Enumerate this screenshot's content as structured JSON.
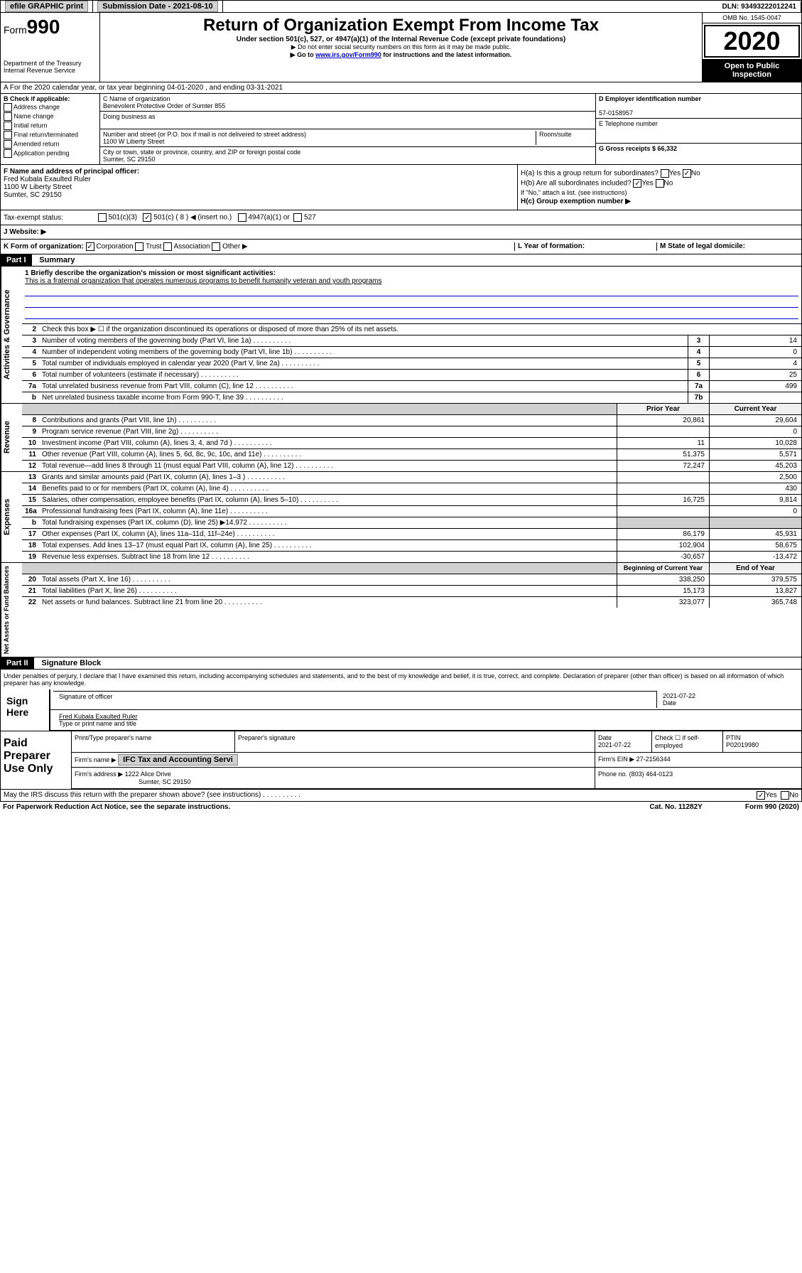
{
  "topbar": {
    "efile": "efile GRAPHIC print",
    "submission": "Submission Date - 2021-08-10",
    "dln": "DLN: 93493222012241"
  },
  "header": {
    "form_prefix": "Form",
    "form_number": "990",
    "dept": "Department of the Treasury\nInternal Revenue Service",
    "title": "Return of Organization Exempt From Income Tax",
    "subtitle": "Under section 501(c), 527, or 4947(a)(1) of the Internal Revenue Code (except private foundations)",
    "note1": "▶ Do not enter social security numbers on this form as it may be made public.",
    "note2_prefix": "▶ Go to ",
    "note2_link": "www.irs.gov/Form990",
    "note2_suffix": " for instructions and the latest information.",
    "omb": "OMB No. 1545-0047",
    "year": "2020",
    "open": "Open to Public Inspection"
  },
  "row_a": "A For the 2020 calendar year, or tax year beginning 04-01-2020    , and ending 03-31-2021",
  "col_b": {
    "title": "B Check if applicable:",
    "opts": [
      "Address change",
      "Name change",
      "Initial return",
      "Final return/terminated",
      "Amended return",
      "Application pending"
    ]
  },
  "col_c": {
    "name_label": "C Name of organization",
    "name": "Benevolent Protective Order of Sumter 855",
    "dba_label": "Doing business as",
    "dba": "",
    "addr_label": "Number and street (or P.O. box if mail is not delivered to street address)",
    "room_label": "Room/suite",
    "addr": "1100 W Liberty Street",
    "city_label": "City or town, state or province, country, and ZIP or foreign postal code",
    "city": "Sumter, SC  29150"
  },
  "col_d": {
    "ein_label": "D Employer identification number",
    "ein": "57-0158957",
    "phone_label": "E Telephone number",
    "phone": "",
    "gross_label": "G Gross receipts $ 66,332"
  },
  "col_f": {
    "label": "F  Name and address of principal officer:",
    "name": "Fred Kubala Exaulted Ruler",
    "addr1": "1100 W Liberty Street",
    "addr2": "Sumter, SC  29150"
  },
  "col_h": {
    "ha": "H(a)  Is this a group return for subordinates?",
    "hb": "H(b)  Are all subordinates included?",
    "hb_note": "If \"No,\" attach a list. (see instructions)",
    "hc": "H(c)  Group exemption number ▶"
  },
  "status": {
    "label": "Tax-exempt status:",
    "opt1": "501(c)(3)",
    "opt2": "501(c) ( 8 ) ◀ (insert no.)",
    "opt3": "4947(a)(1) or",
    "opt4": "527"
  },
  "website": {
    "label": "J    Website: ▶"
  },
  "korg": {
    "k": "K Form of organization:",
    "k1": "Corporation",
    "k2": "Trust",
    "k3": "Association",
    "k4": "Other ▶",
    "l": "L Year of formation:",
    "m": "M State of legal domicile:"
  },
  "part1": {
    "header": "Part I",
    "title": "Summary",
    "line1_label": "1  Briefly describe the organization's mission or most significant activities:",
    "line1_text": "This is a fraternal organization that operates numerous programs to benefit humanity veteran and youth programs",
    "line2": "Check this box ▶ ☐  if the organization discontinued its operations or disposed of more than 25% of its net assets.",
    "rows_a": [
      {
        "n": "3",
        "d": "Number of voting members of the governing body (Part VI, line 1a)",
        "b": "3",
        "v": "14"
      },
      {
        "n": "4",
        "d": "Number of independent voting members of the governing body (Part VI, line 1b)",
        "b": "4",
        "v": "0"
      },
      {
        "n": "5",
        "d": "Total number of individuals employed in calendar year 2020 (Part V, line 2a)",
        "b": "5",
        "v": "4"
      },
      {
        "n": "6",
        "d": "Total number of volunteers (estimate if necessary)",
        "b": "6",
        "v": "25"
      },
      {
        "n": "7a",
        "d": "Total unrelated business revenue from Part VIII, column (C), line 12",
        "b": "7a",
        "v": "499"
      },
      {
        "n": " b",
        "d": "Net unrelated business taxable income from Form 990-T, line 39",
        "b": "7b",
        "v": ""
      }
    ],
    "col_headers": {
      "prior": "Prior Year",
      "current": "Current Year"
    },
    "rows_rev": [
      {
        "n": "8",
        "d": "Contributions and grants (Part VIII, line 1h)",
        "p": "20,861",
        "c": "29,604"
      },
      {
        "n": "9",
        "d": "Program service revenue (Part VIII, line 2g)",
        "p": "",
        "c": "0"
      },
      {
        "n": "10",
        "d": "Investment income (Part VIII, column (A), lines 3, 4, and 7d )",
        "p": "11",
        "c": "10,028"
      },
      {
        "n": "11",
        "d": "Other revenue (Part VIII, column (A), lines 5, 6d, 8c, 9c, 10c, and 11e)",
        "p": "51,375",
        "c": "5,571"
      },
      {
        "n": "12",
        "d": "Total revenue—add lines 8 through 11 (must equal Part VIII, column (A), line 12)",
        "p": "72,247",
        "c": "45,203"
      }
    ],
    "rows_exp": [
      {
        "n": "13",
        "d": "Grants and similar amounts paid (Part IX, column (A), lines 1–3 )",
        "p": "",
        "c": "2,500"
      },
      {
        "n": "14",
        "d": "Benefits paid to or for members (Part IX, column (A), line 4)",
        "p": "",
        "c": "430"
      },
      {
        "n": "15",
        "d": "Salaries, other compensation, employee benefits (Part IX, column (A), lines 5–10)",
        "p": "16,725",
        "c": "9,814"
      },
      {
        "n": "16a",
        "d": "Professional fundraising fees (Part IX, column (A), line 11e)",
        "p": "",
        "c": "0"
      },
      {
        "n": "b",
        "d": "Total fundraising expenses (Part IX, column (D), line 25) ▶14,972",
        "p": "",
        "c": "",
        "gray": true
      },
      {
        "n": "17",
        "d": "Other expenses (Part IX, column (A), lines 11a–11d, 11f–24e)",
        "p": "86,179",
        "c": "45,931"
      },
      {
        "n": "18",
        "d": "Total expenses. Add lines 13–17 (must equal Part IX, column (A), line 25)",
        "p": "102,904",
        "c": "58,675"
      },
      {
        "n": "19",
        "d": "Revenue less expenses. Subtract line 18 from line 12",
        "p": "-30,657",
        "c": "-13,472"
      }
    ],
    "col_headers2": {
      "prior": "Beginning of Current Year",
      "current": "End of Year"
    },
    "rows_net": [
      {
        "n": "20",
        "d": "Total assets (Part X, line 16)",
        "p": "338,250",
        "c": "379,575"
      },
      {
        "n": "21",
        "d": "Total liabilities (Part X, line 26)",
        "p": "15,173",
        "c": "13,827"
      },
      {
        "n": "22",
        "d": "Net assets or fund balances. Subtract line 21 from line 20",
        "p": "323,077",
        "c": "365,748"
      }
    ],
    "tabs": {
      "gov": "Activities & Governance",
      "rev": "Revenue",
      "exp": "Expenses",
      "net": "Net Assets or Fund Balances"
    }
  },
  "part2": {
    "header": "Part II",
    "title": "Signature Block",
    "declare": "Under penalties of perjury, I declare that I have examined this return, including accompanying schedules and statements, and to the best of my knowledge and belief, it is true, correct, and complete. Declaration of preparer (other than officer) is based on all information of which preparer has any knowledge.",
    "sign_here": "Sign Here",
    "sig_officer": "Signature of officer",
    "sig_date": "2021-07-22",
    "sig_date_label": "Date",
    "sig_name": "Fred Kubala Exaulted Ruler",
    "sig_name_label": "Type or print name and title",
    "paid": "Paid Preparer Use Only",
    "prep_name_label": "Print/Type preparer's name",
    "prep_sig_label": "Preparer's signature",
    "prep_date_label": "Date",
    "prep_date": "2021-07-22",
    "prep_check": "Check ☐ if self-employed",
    "ptin_label": "PTIN",
    "ptin": "P02019980",
    "firm_name_label": "Firm's name    ▶",
    "firm_name": "IFC Tax and Accounting Servi",
    "firm_ein_label": "Firm's EIN ▶",
    "firm_ein": "27-2156344",
    "firm_addr_label": "Firm's address ▶",
    "firm_addr": "1222 Alice Drive",
    "firm_addr2": "Sumter, SC  29150",
    "firm_phone_label": "Phone no.",
    "firm_phone": "(803) 464-0123"
  },
  "footer": {
    "discuss": "May the IRS discuss this return with the preparer shown above? (see instructions)",
    "yes": "Yes",
    "no": "No",
    "paperwork": "For Paperwork Reduction Act Notice, see the separate instructions.",
    "cat": "Cat. No. 11282Y",
    "form": "Form 990 (2020)"
  }
}
